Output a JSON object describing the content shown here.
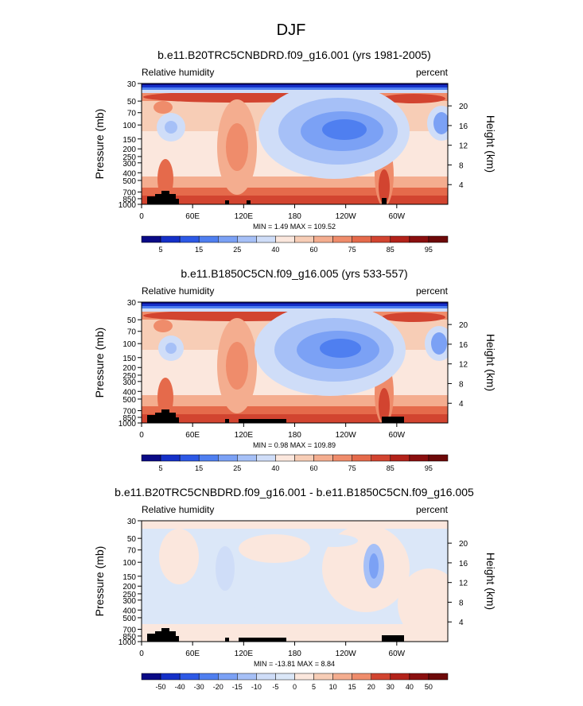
{
  "figure": {
    "season": "DJF",
    "variable_label": "Relative humidity",
    "units_label": "percent",
    "y_axis_label": "Pressure (mb)",
    "y2_axis_label": "Height (km)",
    "pressure_ticks": [
      "30",
      "50",
      "70",
      "100",
      "150",
      "200",
      "250",
      "300",
      "400",
      "500",
      "700",
      "850",
      "1000"
    ],
    "height_ticks": [
      "20",
      "16",
      "12",
      "8",
      "4"
    ],
    "lon_ticks": [
      "0",
      "60E",
      "120E",
      "180",
      "120W",
      "60W"
    ]
  },
  "chart_data": [
    {
      "type": "heatmap",
      "title": "b.e11.B20TRC5CNBDRD.f09_g16.001 (yrs 1981-2005)",
      "xlabel": "",
      "ylabel": "Pressure (mb)",
      "x_range": [
        0,
        360
      ],
      "y_range_mb": [
        30,
        1000
      ],
      "min_label": "MIN =   1.49  MAX = 109.52",
      "min": 1.49,
      "max": 109.52,
      "colorbar": {
        "levels": [
          5,
          10,
          15,
          20,
          25,
          30,
          40,
          50,
          60,
          70,
          75,
          80,
          85,
          90,
          95
        ],
        "labels": [
          "5",
          "15",
          "25",
          "40",
          "60",
          "75",
          "85",
          "95"
        ],
        "colors": [
          "#0a0a86",
          "#1530c8",
          "#2d59e6",
          "#4f7ff0",
          "#7ba1f5",
          "#a6c0f7",
          "#cfddf8",
          "#fbe7dd",
          "#f7cdb6",
          "#f4ad8f",
          "#ef8c6b",
          "#e56a4b",
          "#d24430",
          "#b3221a",
          "#8a0f0f",
          "#6d0909"
        ]
      }
    },
    {
      "type": "heatmap",
      "title": "b.e11.B1850C5CN.f09_g16.005 (yrs 533-557)",
      "xlabel": "",
      "ylabel": "Pressure (mb)",
      "x_range": [
        0,
        360
      ],
      "y_range_mb": [
        30,
        1000
      ],
      "min_label": "MIN =   0.98  MAX = 109.89",
      "min": 0.98,
      "max": 109.89,
      "colorbar": {
        "levels": [
          5,
          10,
          15,
          20,
          25,
          30,
          40,
          50,
          60,
          70,
          75,
          80,
          85,
          90,
          95
        ],
        "labels": [
          "5",
          "15",
          "25",
          "40",
          "60",
          "75",
          "85",
          "95"
        ],
        "colors": [
          "#0a0a86",
          "#1530c8",
          "#2d59e6",
          "#4f7ff0",
          "#7ba1f5",
          "#a6c0f7",
          "#cfddf8",
          "#fbe7dd",
          "#f7cdb6",
          "#f4ad8f",
          "#ef8c6b",
          "#e56a4b",
          "#d24430",
          "#b3221a",
          "#8a0f0f",
          "#6d0909"
        ]
      }
    },
    {
      "type": "heatmap",
      "title": "b.e11.B20TRC5CNBDRD.f09_g16.001 - b.e11.B1850C5CN.f09_g16.005",
      "xlabel": "",
      "ylabel": "Pressure (mb)",
      "x_range": [
        0,
        360
      ],
      "y_range_mb": [
        30,
        1000
      ],
      "min_label": "MIN = -13.81  MAX =   8.84",
      "min": -13.81,
      "max": 8.84,
      "colorbar": {
        "levels": [
          -50,
          -40,
          -30,
          -20,
          -15,
          -10,
          -5,
          0,
          5,
          10,
          15,
          20,
          30,
          40,
          50
        ],
        "labels": [
          "-50",
          "-40",
          "-30",
          "-20",
          "-15",
          "-10",
          "-5",
          "0",
          "5",
          "10",
          "15",
          "20",
          "30",
          "40",
          "50"
        ],
        "colors": [
          "#0a0a86",
          "#1530c8",
          "#2d59e6",
          "#4f7ff0",
          "#7ba1f5",
          "#a6c0f7",
          "#cfddf8",
          "#dbe7f8",
          "#fbe7dd",
          "#f7cdb6",
          "#f4ad8f",
          "#ef8c6b",
          "#d24430",
          "#b3221a",
          "#8a0f0f",
          "#6d0909"
        ]
      }
    }
  ]
}
